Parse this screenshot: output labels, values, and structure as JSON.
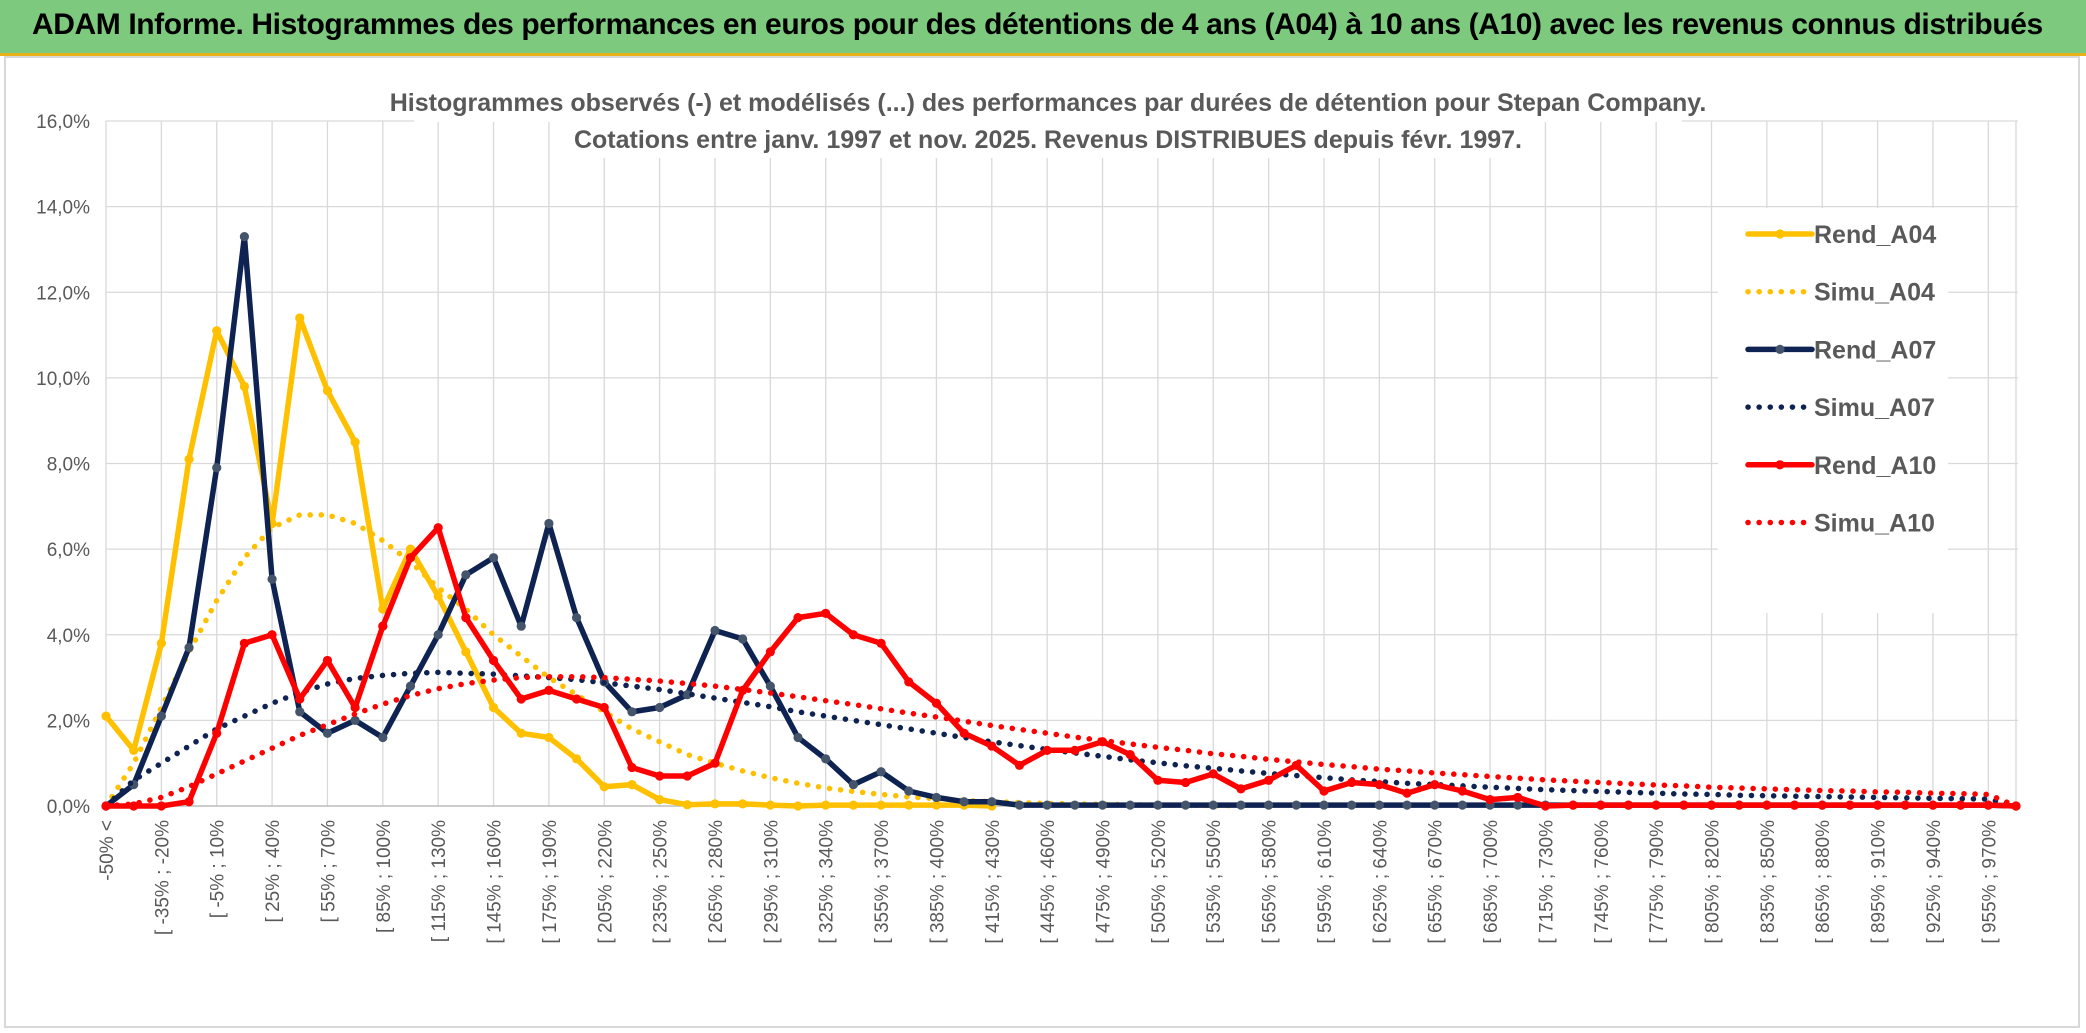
{
  "header": {
    "title": "ADAM Informe. Histogrammes des performances en euros pour des détentions de 4 ans (A04) à 10 ans (A10) avec les revenus connus distribués"
  },
  "chart_data": {
    "type": "line",
    "title": "Histogrammes observés (-) et modélisés (...) des performances par durées de détention pour Stepan Company.",
    "subtitle": "Cotations entre janv. 1997 et nov. 2025. Revenus DISTRIBUES depuis févr. 1997.",
    "xlabel": "",
    "ylabel": "",
    "ylim": [
      0,
      16
    ],
    "yticks": [
      "0,0%",
      "2,0%",
      "4,0%",
      "6,0%",
      "8,0%",
      "10,0%",
      "12,0%",
      "14,0%",
      "16,0%"
    ],
    "grid": true,
    "legend_position": "top-right",
    "x_tick_labels": [
      "-50% <",
      "[ -35% ; -20%",
      "[ -5% ; 10%",
      "[ 25% ; 40%",
      "[ 55% ; 70%",
      "[ 85% ; 100%",
      "[ 115% ; 130%",
      "[ 145% ; 160%",
      "[ 175% ; 190%",
      "[ 205% ; 220%",
      "[ 235% ; 250%",
      "[ 265% ; 280%",
      "[ 295% ; 310%",
      "[ 325% ; 340%",
      "[ 355% ; 370%",
      "[ 385% ; 400%",
      "[ 415% ; 430%",
      "[ 445% ; 460%",
      "[ 475% ; 490%",
      "[ 505% ; 520%",
      "[ 535% ; 550%",
      "[ 565% ; 580%",
      "[ 595% ; 610%",
      "[ 625% ; 640%",
      "[ 655% ; 670%",
      "[ 685% ; 700%",
      "[ 715% ; 730%",
      "[ 745% ; 760%",
      "[ 775% ; 790%",
      "[ 805% ; 820%",
      "[ 835% ; 850%",
      "[ 865% ; 880%",
      "[ 895% ; 910%",
      "[ 925% ; 940%",
      "[ 955% ; 970%"
    ],
    "n_categories": 70,
    "series": [
      {
        "name": "Rend_A04",
        "style": "solid",
        "color": "#ffc000",
        "values": [
          2.1,
          1.3,
          3.8,
          8.1,
          11.1,
          9.8,
          6.6,
          11.4,
          9.7,
          8.5,
          4.6,
          6.0,
          4.9,
          3.6,
          2.3,
          1.7,
          1.6,
          1.1,
          0.45,
          0.5,
          0.15,
          0.03,
          0.05,
          0.05,
          0.02,
          0.0,
          0.02,
          0.02,
          0.02,
          0.02,
          0.02,
          0.02,
          0.0
        ]
      },
      {
        "name": "Simu_A04",
        "style": "dotted",
        "color": "#ffc000",
        "values": [
          0.0,
          1.0,
          2.3,
          3.6,
          4.8,
          5.8,
          6.5,
          6.8,
          6.8,
          6.6,
          6.2,
          5.7,
          5.1,
          4.6,
          4.0,
          3.5,
          3.0,
          2.6,
          2.2,
          1.8,
          1.5,
          1.2,
          1.0,
          0.82,
          0.66,
          0.53,
          0.42,
          0.34,
          0.27,
          0.21,
          0.17,
          0.13,
          0.1,
          0.08,
          0.06,
          0.05,
          0.04,
          0.03,
          0.02,
          0.02,
          0.01,
          0.01
        ]
      },
      {
        "name": "Rend_A07",
        "style": "solid",
        "color": "#0e2351",
        "values": [
          0.0,
          0.5,
          2.1,
          3.7,
          7.9,
          13.3,
          5.3,
          2.2,
          1.7,
          2.0,
          1.6,
          2.8,
          4.0,
          5.4,
          5.8,
          4.2,
          6.6,
          4.4,
          2.9,
          2.2,
          2.3,
          2.6,
          4.1,
          3.9,
          2.8,
          1.6,
          1.1,
          0.5,
          0.8,
          0.35,
          0.2,
          0.1,
          0.1,
          0.02,
          0.02,
          0.02,
          0.02,
          0.02,
          0.02,
          0.02,
          0.02,
          0.02,
          0.02,
          0.02,
          0.02,
          0.02,
          0.02,
          0.02,
          0.02,
          0.02,
          0.02,
          0.02,
          0.02,
          0.02,
          0.02,
          0.02,
          0.02,
          0.02,
          0.02,
          0.02,
          0.02,
          0.02,
          0.02,
          0.02,
          0.02,
          0.02,
          0.02,
          0.02,
          0.02,
          0.0
        ]
      },
      {
        "name": "Simu_A07",
        "style": "dotted",
        "color": "#0e2351",
        "values": [
          0.0,
          0.6,
          1.0,
          1.4,
          1.8,
          2.1,
          2.4,
          2.65,
          2.85,
          2.98,
          3.05,
          3.1,
          3.12,
          3.1,
          3.08,
          3.04,
          3.0,
          2.95,
          2.88,
          2.8,
          2.72,
          2.62,
          2.52,
          2.42,
          2.32,
          2.2,
          2.1,
          2.0,
          1.9,
          1.8,
          1.7,
          1.6,
          1.5,
          1.41,
          1.32,
          1.24,
          1.16,
          1.08,
          1.01,
          0.94,
          0.88,
          0.82,
          0.76,
          0.71,
          0.66,
          0.61,
          0.57,
          0.53,
          0.5,
          0.47,
          0.44,
          0.41,
          0.38,
          0.36,
          0.34,
          0.32,
          0.3,
          0.28,
          0.27,
          0.25,
          0.24,
          0.23,
          0.22,
          0.21,
          0.2,
          0.19,
          0.18,
          0.17,
          0.16,
          0.0
        ]
      },
      {
        "name": "Rend_A10",
        "style": "solid",
        "color": "#ff0000",
        "values": [
          0.0,
          0.0,
          0.0,
          0.1,
          1.7,
          3.8,
          4.0,
          2.5,
          3.4,
          2.3,
          4.2,
          5.8,
          6.5,
          4.4,
          3.4,
          2.5,
          2.7,
          2.5,
          2.3,
          0.9,
          0.7,
          0.7,
          1.0,
          2.7,
          3.6,
          4.4,
          4.5,
          4.0,
          3.8,
          2.9,
          2.4,
          1.7,
          1.4,
          0.95,
          1.3,
          1.3,
          1.5,
          1.2,
          0.6,
          0.55,
          0.75,
          0.4,
          0.6,
          0.95,
          0.35,
          0.55,
          0.5,
          0.3,
          0.5,
          0.35,
          0.15,
          0.2,
          0.0,
          0.02,
          0.02,
          0.02,
          0.02,
          0.02,
          0.02,
          0.02,
          0.02,
          0.02,
          0.02,
          0.02,
          0.02,
          0.02,
          0.02,
          0.02,
          0.02,
          0.0
        ]
      },
      {
        "name": "Simu_A10",
        "style": "dotted",
        "color": "#ff0000",
        "values": [
          0.0,
          0.05,
          0.2,
          0.45,
          0.75,
          1.05,
          1.35,
          1.65,
          1.9,
          2.15,
          2.38,
          2.58,
          2.74,
          2.86,
          2.94,
          3.0,
          3.02,
          3.02,
          3.0,
          2.96,
          2.92,
          2.86,
          2.8,
          2.72,
          2.64,
          2.55,
          2.46,
          2.37,
          2.27,
          2.17,
          2.08,
          1.98,
          1.88,
          1.79,
          1.7,
          1.61,
          1.53,
          1.45,
          1.37,
          1.3,
          1.22,
          1.16,
          1.09,
          1.03,
          0.97,
          0.92,
          0.86,
          0.82,
          0.77,
          0.73,
          0.69,
          0.65,
          0.61,
          0.58,
          0.55,
          0.52,
          0.49,
          0.47,
          0.44,
          0.42,
          0.4,
          0.38,
          0.36,
          0.35,
          0.33,
          0.32,
          0.3,
          0.29,
          0.27,
          0.0
        ]
      }
    ]
  }
}
